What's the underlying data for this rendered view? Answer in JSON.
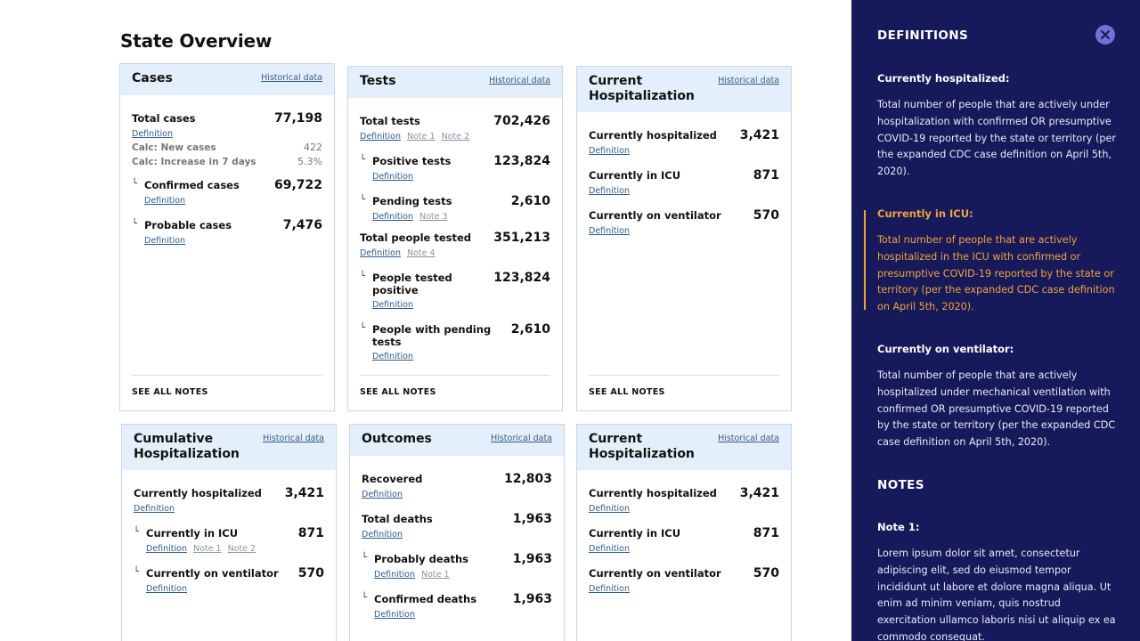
{
  "page": {
    "title": "State Overview"
  },
  "common": {
    "historical": "Historical data",
    "definition": "Definition",
    "see_all_notes": "SEE ALL NOTES"
  },
  "cases": {
    "title": "Cases",
    "total_label": "Total cases",
    "total_value": "77,198",
    "new_label": "Calc: New cases",
    "new_value": "422",
    "inc_label": "Calc: Increase in 7 days",
    "inc_value": "5.3%",
    "confirmed_label": "Confirmed cases",
    "confirmed_value": "69,722",
    "probable_label": "Probable cases",
    "probable_value": "7,476"
  },
  "tests": {
    "title": "Tests",
    "total_label": "Total tests",
    "total_value": "702,426",
    "total_note1": "Note 1",
    "total_note2": "Note 2",
    "positive_label": "Positive tests",
    "positive_value": "123,824",
    "pending_label": "Pending tests",
    "pending_value": "2,610",
    "pending_note": "Note 3",
    "people_label": "Total people tested",
    "people_value": "351,213",
    "people_note": "Note 4",
    "people_pos_label": "People tested positive",
    "people_pos_value": "123,824",
    "people_pending_label": "People with pending tests",
    "people_pending_value": "2,610"
  },
  "current_hosp": {
    "title": "Current Hospitalization",
    "hosp_label": "Currently hospitalized",
    "hosp_value": "3,421",
    "icu_label": "Currently in ICU",
    "icu_value": "871",
    "vent_label": "Currently on ventilator",
    "vent_value": "570"
  },
  "cumulative": {
    "title": "Cumulative Hospitalization",
    "hosp_label": "Currently hospitalized",
    "hosp_value": "3,421",
    "icu_label": "Currently in ICU",
    "icu_value": "871",
    "icu_note1": "Note 1",
    "icu_note2": "Note 2",
    "vent_label": "Currently on ventilator",
    "vent_value": "570"
  },
  "outcomes": {
    "title": "Outcomes",
    "recovered_label": "Recovered",
    "recovered_value": "12,803",
    "deaths_label": "Total deaths",
    "deaths_value": "1,963",
    "prob_deaths_label": "Probably deaths",
    "prob_deaths_value": "1,963",
    "prob_deaths_note": "Note 1",
    "conf_deaths_label": "Confirmed deaths",
    "conf_deaths_value": "1,963"
  },
  "current_hosp2": {
    "title": "Current Hospitalization",
    "hosp_label": "Currently hospitalized",
    "hosp_value": "3,421",
    "icu_label": "Currently in ICU",
    "icu_value": "871",
    "vent_label": "Currently on ventilator",
    "vent_value": "570"
  },
  "sidebar": {
    "definitions_heading": "DEFINITIONS",
    "close_icon": "close-icon",
    "accent": "#f2a23a",
    "background": "#161a5b",
    "defs": [
      {
        "title": "Currently hospitalized:",
        "text": "Total number of people that are actively under hospitalization with confirmed OR presumptive COVID-19 reported by the state or territory (per the expanded CDC case definition on April 5th, 2020)."
      },
      {
        "title": "Currently in ICU:",
        "text": "Total number of people that are actively hospitalized in the ICU with confirmed or presumptive COVID-19 reported by the state or territory (per the expanded CDC case definition on April 5th, 2020)."
      },
      {
        "title": "Currently on ventilator:",
        "text": "Total number of people that are actively hospitalized under mechanical ventilation with confirmed OR presumptive COVID-19 reported by the state or territory (per the expanded CDC case definition on April 5th, 2020)."
      }
    ],
    "notes_heading": "NOTES",
    "note1_title": "Note 1:",
    "note1_text": "Lorem ipsum dolor sit amet, consectetur adipiscing elit, sed do eiusmod tempor incididunt ut labore et dolore magna aliqua. Ut enim ad minim veniam, quis nostrud exercitation ullamco laboris nisi ut aliquip ex ea commodo consequat."
  }
}
